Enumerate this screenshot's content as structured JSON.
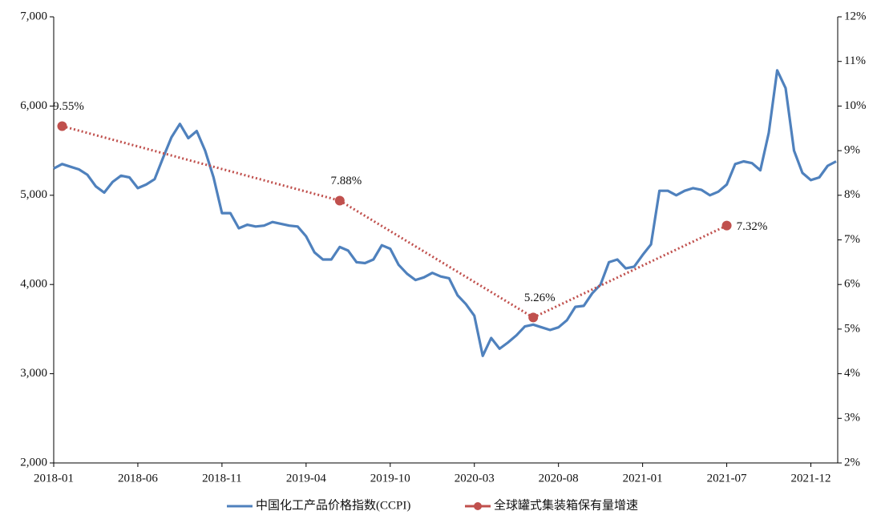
{
  "chart_data": {
    "type": "line",
    "categories": [
      "2018-01",
      null,
      null,
      null,
      null,
      null,
      null,
      null,
      null,
      null,
      "2018-06",
      null,
      null,
      null,
      null,
      null,
      null,
      null,
      null,
      null,
      "2018-11",
      null,
      null,
      null,
      null,
      null,
      null,
      null,
      null,
      null,
      "2019-04",
      null,
      null,
      null,
      null,
      null,
      null,
      null,
      null,
      null,
      "2019-10",
      null,
      null,
      null,
      null,
      null,
      null,
      null,
      null,
      null,
      "2020-03",
      null,
      null,
      null,
      null,
      null,
      null,
      null,
      null,
      null,
      "2020-08",
      null,
      null,
      null,
      null,
      null,
      null,
      null,
      null,
      null,
      "2021-01",
      null,
      null,
      null,
      null,
      null,
      null,
      null,
      null,
      null,
      "2021-07",
      null,
      null,
      null,
      null,
      null,
      null,
      null,
      null,
      null,
      "2021-12",
      null,
      null,
      null
    ],
    "series": [
      {
        "name": "中国化工产品价格指数(CCPI)",
        "color": "#4f81bd",
        "values": [
          5300,
          5350,
          5320,
          5290,
          5230,
          5100,
          5030,
          5150,
          5220,
          5200,
          5080,
          5120,
          5180,
          5420,
          5650,
          5800,
          5640,
          5720,
          5500,
          5200,
          4800,
          4800,
          4630,
          4670,
          4650,
          4660,
          4700,
          4680,
          4660,
          4650,
          4540,
          4360,
          4280,
          4280,
          4420,
          4380,
          4250,
          4240,
          4280,
          4440,
          4400,
          4220,
          4120,
          4050,
          4080,
          4130,
          4090,
          4070,
          3880,
          3780,
          3650,
          3200,
          3400,
          3280,
          3350,
          3430,
          3530,
          3550,
          3520,
          3490,
          3520,
          3600,
          3750,
          3760,
          3900,
          4000,
          4250,
          4280,
          4180,
          4200,
          4330,
          4450,
          5050,
          5050,
          5000,
          5050,
          5080,
          5060,
          5000,
          5040,
          5120,
          5350,
          5380,
          5360,
          5280,
          5700,
          6400,
          6200,
          5500,
          5250,
          5170,
          5200,
          5330,
          5380
        ]
      },
      {
        "name": "全球罐式集装箱保有量增速",
        "color": "#c0504d",
        "axis": "y2",
        "values": [
          null,
          9.55,
          null,
          null,
          null,
          null,
          null,
          null,
          null,
          null,
          null,
          null,
          null,
          null,
          null,
          null,
          null,
          null,
          null,
          null,
          null,
          null,
          null,
          null,
          null,
          null,
          null,
          null,
          null,
          null,
          null,
          null,
          null,
          null,
          7.88,
          null,
          null,
          null,
          null,
          null,
          null,
          null,
          null,
          null,
          null,
          null,
          null,
          null,
          null,
          null,
          null,
          null,
          null,
          null,
          null,
          null,
          null,
          5.26,
          null,
          null,
          null,
          null,
          null,
          null,
          null,
          null,
          null,
          null,
          null,
          null,
          null,
          null,
          null,
          null,
          null,
          null,
          null,
          null,
          null,
          null,
          7.32,
          null,
          null,
          null,
          null,
          null,
          null,
          null,
          null,
          null,
          null,
          null,
          null,
          null
        ],
        "value_labels": [
          null,
          "9.55%",
          null,
          null,
          null,
          null,
          null,
          null,
          null,
          null,
          null,
          null,
          null,
          null,
          null,
          null,
          null,
          null,
          null,
          null,
          null,
          null,
          null,
          null,
          null,
          null,
          null,
          null,
          null,
          null,
          null,
          null,
          null,
          null,
          "7.88%",
          null,
          null,
          null,
          null,
          null,
          null,
          null,
          null,
          null,
          null,
          null,
          null,
          null,
          null,
          null,
          null,
          null,
          null,
          null,
          null,
          null,
          null,
          "5.26%",
          null,
          null,
          null,
          null,
          null,
          null,
          null,
          null,
          null,
          null,
          null,
          null,
          null,
          null,
          null,
          null,
          null,
          null,
          null,
          null,
          null,
          null,
          "7.32%",
          null,
          null,
          null,
          null,
          null,
          null,
          null,
          null,
          null,
          null,
          null,
          null,
          null
        ]
      }
    ],
    "ylim": [
      2000,
      7000
    ],
    "yticks": [
      {
        "value": 2000,
        "label": "2,000"
      },
      {
        "value": 3000,
        "label": "3,000"
      },
      {
        "value": 4000,
        "label": "4,000"
      },
      {
        "value": 5000,
        "label": "5,000"
      },
      {
        "value": 6000,
        "label": "6,000"
      },
      {
        "value": 7000,
        "label": "7,000"
      }
    ],
    "y2lim": [
      2,
      12
    ],
    "y2ticks": [
      {
        "value": 2,
        "label": "2%"
      },
      {
        "value": 3,
        "label": "3%"
      },
      {
        "value": 4,
        "label": "4%"
      },
      {
        "value": 5,
        "label": "5%"
      },
      {
        "value": 6,
        "label": "6%"
      },
      {
        "value": 7,
        "label": "7%"
      },
      {
        "value": 8,
        "label": "8%"
      },
      {
        "value": 9,
        "label": "9%"
      },
      {
        "value": 10,
        "label": "10%"
      },
      {
        "value": 11,
        "label": "11%"
      },
      {
        "value": 12,
        "label": "12%"
      }
    ],
    "legend": "bottom"
  }
}
